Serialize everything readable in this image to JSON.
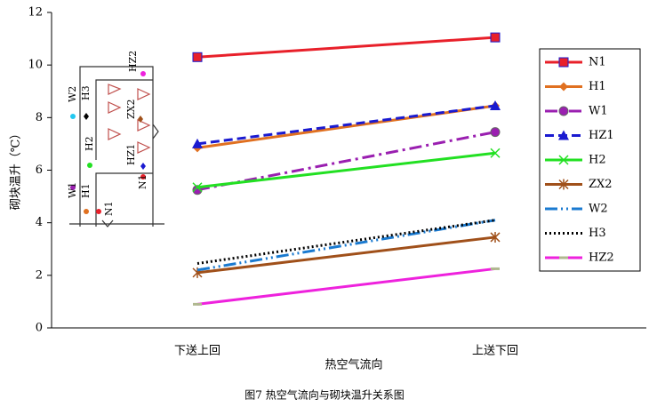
{
  "chart_data": {
    "type": "line",
    "caption": "图7 热空气流向与砌块温升关系图",
    "x_label": "热空气流向",
    "y_label": "砌块温升（℃）",
    "categories": [
      "下送上回",
      "上送下回"
    ],
    "ylim": [
      0,
      12
    ],
    "yticks": [
      0,
      2,
      4,
      6,
      8,
      10,
      12
    ],
    "series": [
      {
        "name": "N1",
        "color": "#e8202a",
        "marker": "square",
        "dash": "none",
        "values": [
          10.3,
          11.05
        ]
      },
      {
        "name": "H1",
        "color": "#e07020",
        "marker": "diamond",
        "dash": "none",
        "values": [
          6.85,
          8.45
        ]
      },
      {
        "name": "W1",
        "color": "#9a1fb0",
        "marker": "circle",
        "dash": "dashdot",
        "values": [
          5.25,
          7.45
        ]
      },
      {
        "name": "HZ1",
        "color": "#1a1ad0",
        "marker": "triangle",
        "dash": "dashed",
        "values": [
          7.0,
          8.45
        ]
      },
      {
        "name": "H2",
        "color": "#22e022",
        "marker": "x",
        "dash": "none",
        "values": [
          5.35,
          6.65
        ]
      },
      {
        "name": "ZX2",
        "color": "#a0501a",
        "marker": "star",
        "dash": "none",
        "values": [
          2.1,
          3.45
        ]
      },
      {
        "name": "W2",
        "color": "#1a7ad0",
        "marker": "none",
        "dash": "dashdotdot",
        "values": [
          2.2,
          4.1
        ]
      },
      {
        "name": "H3",
        "color": "#000000",
        "marker": "none",
        "dash": "dotted",
        "values": [
          2.45,
          4.1
        ]
      },
      {
        "name": "HZ2",
        "color": "#ee22dd",
        "marker": "bar",
        "dash": "none",
        "values": [
          0.9,
          2.25
        ]
      }
    ]
  },
  "inset": {
    "labels": [
      "W2",
      "H3",
      "HZ2",
      "ZX2",
      "H2",
      "HZ1",
      "W1",
      "H1",
      "N1",
      "N1"
    ]
  }
}
